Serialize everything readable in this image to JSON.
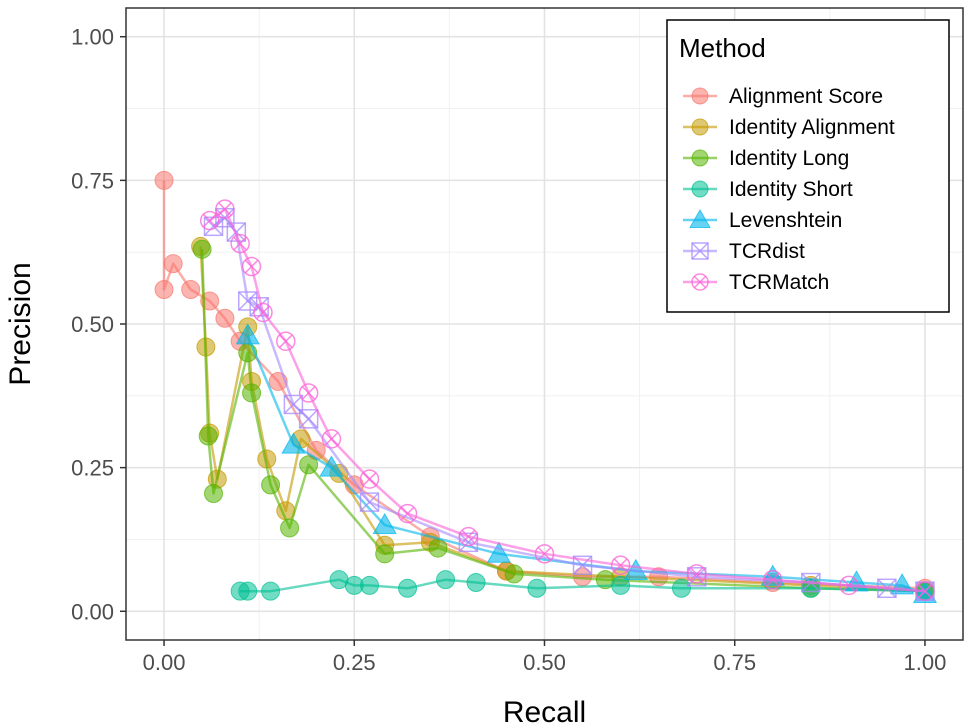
{
  "chart_data": {
    "type": "line",
    "title": "",
    "xlabel": "Recall",
    "ylabel": "Precision",
    "xlim": [
      -0.05,
      1.05
    ],
    "ylim": [
      -0.05,
      1.05
    ],
    "xticks": [
      0,
      0.25,
      0.5,
      0.75,
      1
    ],
    "yticks": [
      0,
      0.25,
      0.5,
      0.75,
      1
    ],
    "xtick_labels": [
      "0.00",
      "0.25",
      "0.50",
      "0.75",
      "1.00"
    ],
    "ytick_labels": [
      "0.00",
      "0.25",
      "0.50",
      "0.75",
      "1.00"
    ],
    "grid": true,
    "legend": {
      "title": "Method",
      "placement": "top-right"
    },
    "series": [
      {
        "name": "Alignment Score",
        "color": "#F8766D",
        "marker": "circle",
        "x": [
          0.0,
          0.0,
          0.012,
          0.035,
          0.06,
          0.08,
          0.1,
          0.15,
          0.2,
          0.25,
          0.35,
          0.45,
          0.55,
          0.65,
          0.8,
          1.0
        ],
        "y": [
          0.75,
          0.56,
          0.605,
          0.56,
          0.54,
          0.51,
          0.47,
          0.4,
          0.28,
          0.22,
          0.13,
          0.07,
          0.06,
          0.06,
          0.05,
          0.04
        ]
      },
      {
        "name": "Identity Alignment",
        "color": "#C49A00",
        "marker": "circle",
        "x": [
          0.048,
          0.055,
          0.06,
          0.07,
          0.11,
          0.115,
          0.135,
          0.16,
          0.18,
          0.23,
          0.29,
          0.35,
          0.45,
          0.6,
          0.85,
          1.0
        ],
        "y": [
          0.635,
          0.46,
          0.31,
          0.23,
          0.495,
          0.4,
          0.265,
          0.175,
          0.3,
          0.24,
          0.115,
          0.12,
          0.07,
          0.06,
          0.045,
          0.035
        ]
      },
      {
        "name": "Identity Long",
        "color": "#53B400",
        "marker": "circle",
        "x": [
          0.05,
          0.058,
          0.065,
          0.11,
          0.115,
          0.14,
          0.165,
          0.19,
          0.29,
          0.36,
          0.46,
          0.58,
          0.85,
          1.0
        ],
        "y": [
          0.63,
          0.305,
          0.205,
          0.45,
          0.38,
          0.22,
          0.145,
          0.255,
          0.1,
          0.11,
          0.065,
          0.055,
          0.04,
          0.035
        ]
      },
      {
        "name": "Identity Short",
        "color": "#00C094",
        "marker": "circle",
        "x": [
          0.1,
          0.11,
          0.14,
          0.23,
          0.25,
          0.27,
          0.32,
          0.37,
          0.41,
          0.49,
          0.6,
          0.68,
          0.85,
          1.0
        ],
        "y": [
          0.035,
          0.035,
          0.035,
          0.055,
          0.045,
          0.045,
          0.04,
          0.055,
          0.05,
          0.04,
          0.045,
          0.04,
          0.04,
          0.035
        ]
      },
      {
        "name": "Levenshtein",
        "color": "#00B6EB",
        "marker": "triangle",
        "x": [
          0.11,
          0.17,
          0.22,
          0.29,
          0.44,
          0.62,
          0.8,
          0.91,
          0.97,
          1.0
        ],
        "y": [
          0.48,
          0.29,
          0.25,
          0.15,
          0.1,
          0.07,
          0.06,
          0.05,
          0.045,
          0.03
        ]
      },
      {
        "name": "TCRdist",
        "color": "#A58AFF",
        "marker": "square-x",
        "x": [
          0.065,
          0.08,
          0.095,
          0.11,
          0.125,
          0.17,
          0.19,
          0.27,
          0.4,
          0.55,
          0.7,
          0.85,
          0.95,
          1.0
        ],
        "y": [
          0.67,
          0.685,
          0.66,
          0.54,
          0.53,
          0.36,
          0.335,
          0.19,
          0.12,
          0.08,
          0.06,
          0.05,
          0.04,
          0.035
        ]
      },
      {
        "name": "TCRMatch",
        "color": "#FB61D7",
        "marker": "circle-x",
        "x": [
          0.06,
          0.08,
          0.1,
          0.115,
          0.13,
          0.16,
          0.19,
          0.22,
          0.27,
          0.32,
          0.4,
          0.5,
          0.6,
          0.7,
          0.8,
          0.9,
          1.0
        ],
        "y": [
          0.68,
          0.7,
          0.64,
          0.6,
          0.52,
          0.47,
          0.38,
          0.3,
          0.23,
          0.17,
          0.13,
          0.1,
          0.08,
          0.065,
          0.055,
          0.045,
          0.035
        ]
      }
    ]
  }
}
